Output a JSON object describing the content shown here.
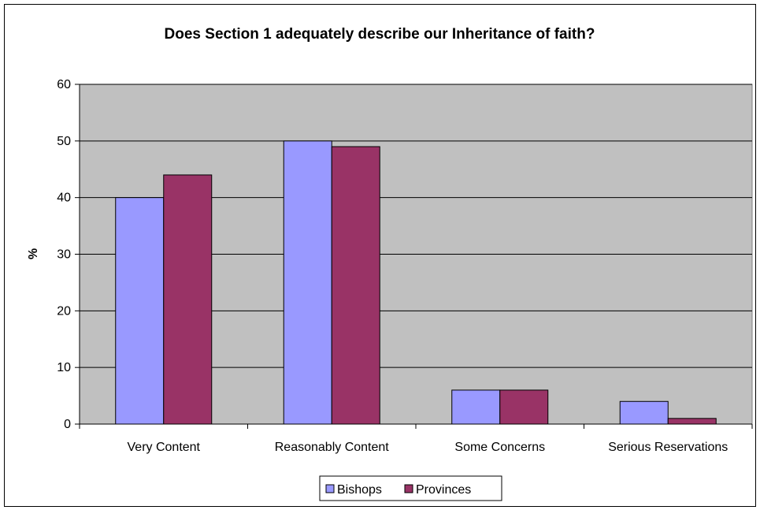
{
  "chart_data": {
    "type": "bar",
    "title": "Does Section 1 adequately describe our Inheritance of faith?",
    "xlabel": "",
    "ylabel": "%",
    "ylim": [
      0,
      60
    ],
    "yticks": [
      0,
      10,
      20,
      30,
      40,
      50,
      60
    ],
    "grid": true,
    "legend_position": "bottom",
    "categories": [
      "Very Content",
      "Reasonably Content",
      "Some Concerns",
      "Serious Reservations"
    ],
    "series": [
      {
        "name": "Bishops",
        "color": "#9999ff",
        "values": [
          40,
          50,
          6,
          4
        ]
      },
      {
        "name": "Provinces",
        "color": "#993366",
        "values": [
          44,
          49,
          6,
          1
        ]
      }
    ],
    "plot_background": "#c0c0c0"
  }
}
